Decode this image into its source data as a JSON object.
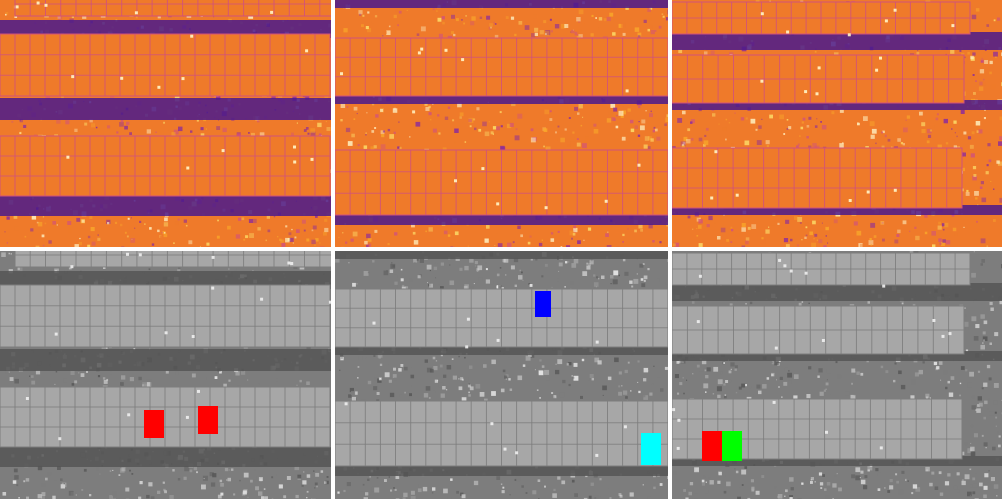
{
  "figure": {
    "rows": [
      {
        "kind": "thermal",
        "palette": [
          "#1a0838",
          "#4a1a8c",
          "#8a2a9e",
          "#d2527a",
          "#ef7a2a",
          "#f9a82a",
          "#fde06a",
          "#fff6c8"
        ]
      },
      {
        "kind": "grayscale",
        "palette": [
          "#2f2f2f",
          "#555555",
          "#7d7d7d",
          "#a7a7a7",
          "#cfcfcf",
          "#f0f0f0"
        ]
      }
    ],
    "tiles": [
      {
        "id": "thermal-1",
        "row": 0,
        "col": 0,
        "panel_rows": 3,
        "highlights": []
      },
      {
        "id": "thermal-2",
        "row": 0,
        "col": 1,
        "panel_rows": 2,
        "highlights": []
      },
      {
        "id": "thermal-3",
        "row": 0,
        "col": 2,
        "panel_rows": 3,
        "highlights": []
      },
      {
        "id": "gray-1",
        "row": 1,
        "col": 0,
        "panel_rows": 3,
        "highlights": [
          {
            "color": "#ff0000"
          },
          {
            "color": "#ff0000"
          }
        ]
      },
      {
        "id": "gray-2",
        "row": 1,
        "col": 1,
        "panel_rows": 2,
        "highlights": [
          {
            "color": "#0000ff"
          },
          {
            "color": "#00ffff"
          }
        ]
      },
      {
        "id": "gray-3",
        "row": 1,
        "col": 2,
        "panel_rows": 3,
        "highlights": [
          {
            "color": "#ff0000"
          },
          {
            "color": "#00ff00"
          }
        ]
      }
    ]
  }
}
